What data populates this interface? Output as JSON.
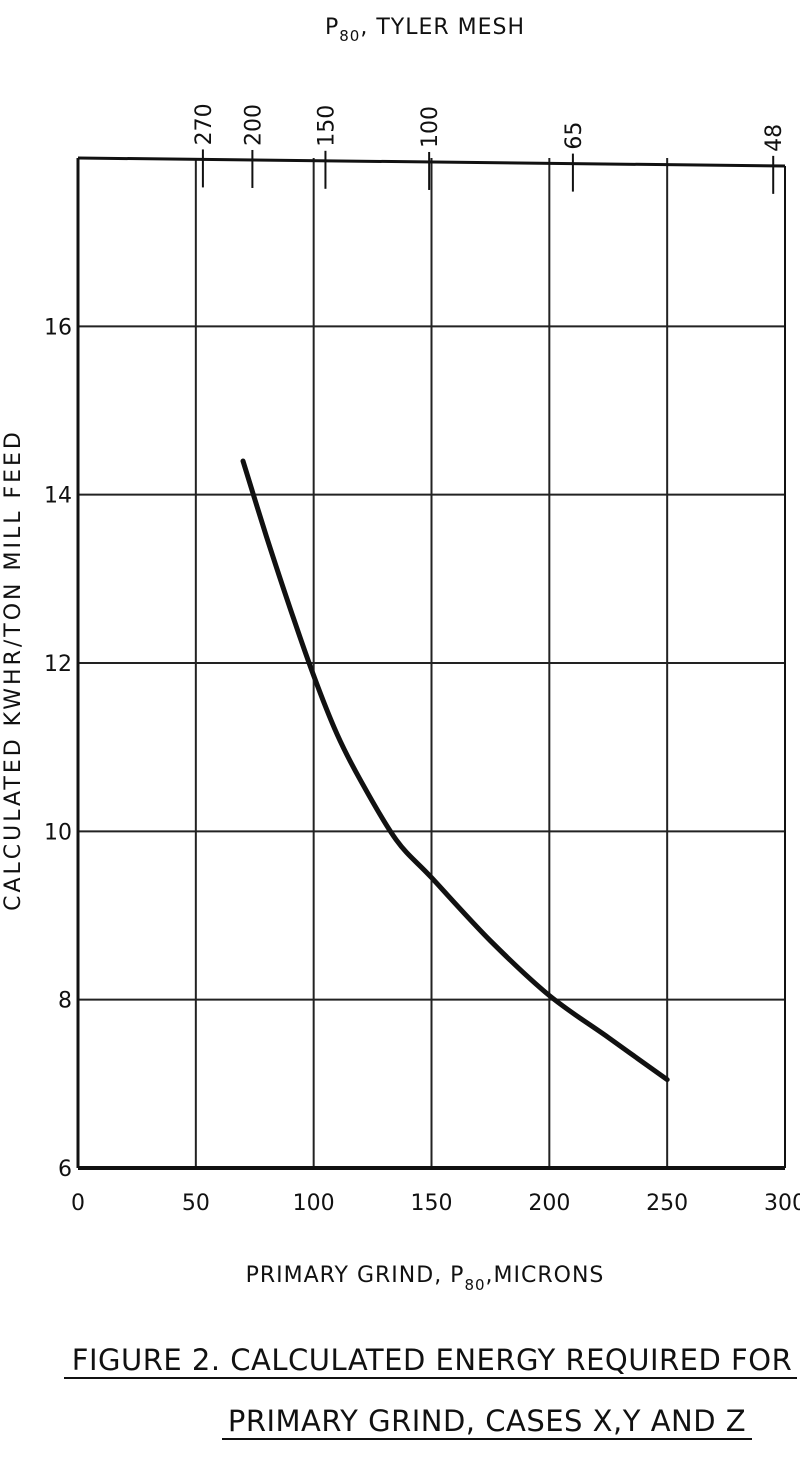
{
  "chart_data": {
    "type": "line",
    "xlabel": {
      "main": "PRIMARY GRIND, P",
      "subscript": "80",
      "suffix": ",MICRONS"
    },
    "ylabel": "CALCULATED KWHR/TON MILL FEED",
    "top_axis_title": {
      "main": "P",
      "subscript": "80",
      "suffix": ", TYLER MESH"
    },
    "xlim": [
      0,
      300
    ],
    "ylim": [
      6,
      18
    ],
    "x_ticks": [
      0,
      50,
      100,
      150,
      200,
      250,
      300
    ],
    "x_tick_labels": [
      "0",
      "50",
      "100",
      "150",
      "200",
      "250",
      "300"
    ],
    "y_ticks": [
      6,
      8,
      10,
      12,
      14,
      16
    ],
    "y_tick_labels": [
      "6",
      "8",
      "10",
      "12",
      "14",
      "16"
    ],
    "mesh_ticks": [
      {
        "label": "270",
        "microns": 53
      },
      {
        "label": "200",
        "microns": 74
      },
      {
        "label": "150",
        "microns": 105
      },
      {
        "label": "100",
        "microns": 149
      },
      {
        "label": "65",
        "microns": 210
      },
      {
        "label": "48",
        "microns": 295
      }
    ],
    "grid": true,
    "series": [
      {
        "x": [
          70,
          80,
          90,
          100,
          110,
          120,
          135,
          150,
          175,
          200,
          225,
          250
        ],
        "y": [
          14.4,
          13.5,
          12.65,
          11.85,
          11.15,
          10.6,
          9.9,
          9.45,
          8.7,
          8.05,
          7.55,
          7.05
        ]
      }
    ],
    "caption": [
      "FIGURE 2. CALCULATED ENERGY REQUIRED FOR",
      "PRIMARY GRIND, CASES X,Y AND Z"
    ]
  }
}
